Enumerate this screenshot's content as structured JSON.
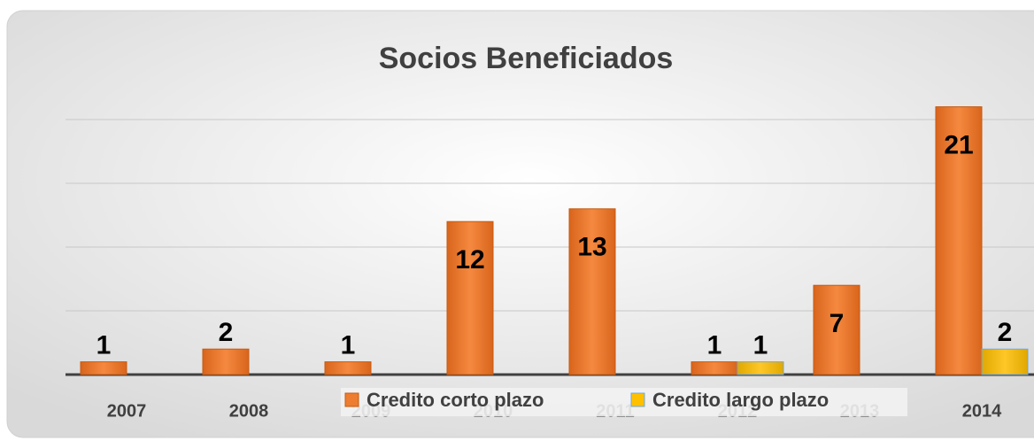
{
  "chart_data": {
    "type": "bar",
    "title": "Socios Beneficiados",
    "categories": [
      "2007",
      "2008",
      "2009",
      "2010",
      "2011",
      "2012",
      "2013",
      "2014"
    ],
    "series": [
      {
        "name": "Credito corto plazo",
        "color": "#ed7d31",
        "values": [
          1,
          2,
          1,
          12,
          13,
          1,
          7,
          21
        ]
      },
      {
        "name": "Credito largo plazo",
        "color": "#ffc000",
        "values": [
          null,
          null,
          null,
          null,
          null,
          1,
          null,
          2
        ]
      }
    ],
    "ylim": [
      0,
      25
    ],
    "yticks": [
      0,
      5,
      10,
      15,
      20
    ],
    "grid": true,
    "legend": "bottom"
  }
}
